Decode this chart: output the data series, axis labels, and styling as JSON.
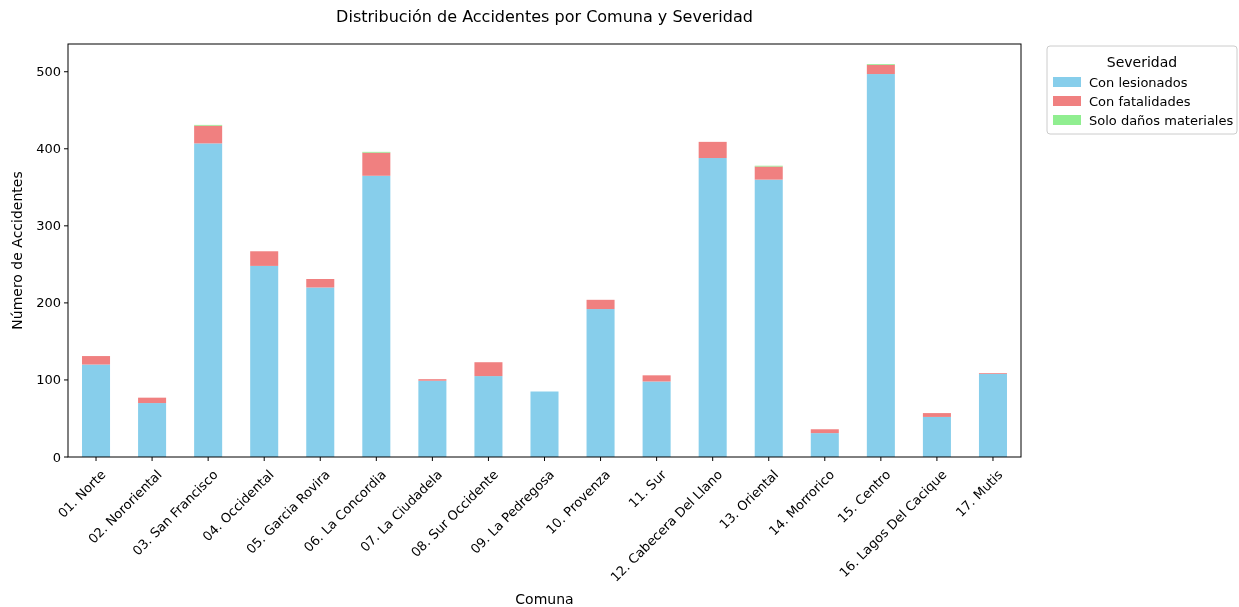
{
  "chart_data": {
    "type": "bar",
    "title": "Distribución de Accidentes por Comuna y Severidad",
    "xlabel": "Comuna",
    "ylabel": "Número de Accidentes",
    "legend_title": "Severidad",
    "legend": "top right",
    "stacked": true,
    "categories": [
      "01. Norte",
      "02. Nororiental",
      "03. San Francisco",
      "04. Occidental",
      "05. Garcia Rovira",
      "06. La Concordia",
      "07. La Ciudadela",
      "08. Sur Occidente",
      "09. La Pedregosa",
      "10. Provenza",
      "11. Sur",
      "12. Cabecera Del Llano",
      "13. Oriental",
      "14. Morrorico",
      "15. Centro",
      "16. Lagos Del Cacique",
      "17. Mutis"
    ],
    "series": [
      {
        "name": "Con lesionados",
        "color": "#87ceeb",
        "values": [
          120,
          70,
          407,
          248,
          220,
          365,
          99,
          105,
          85,
          192,
          98,
          388,
          360,
          31,
          497,
          52,
          108
        ]
      },
      {
        "name": "Con fatalidades",
        "color": "#f08080",
        "values": [
          11,
          7,
          23,
          19,
          11,
          30,
          2,
          18,
          0,
          12,
          8,
          21,
          17,
          5,
          12,
          5,
          1
        ]
      },
      {
        "name": "Solo daños materiales",
        "color": "#90ee90",
        "values": [
          0,
          0,
          1,
          0,
          0,
          1,
          0,
          0,
          0,
          0,
          0,
          0,
          1,
          0,
          1,
          0,
          0
        ]
      }
    ],
    "ylim": [
      0,
      536
    ],
    "yticks": [
      0,
      100,
      200,
      300,
      400,
      500
    ]
  }
}
